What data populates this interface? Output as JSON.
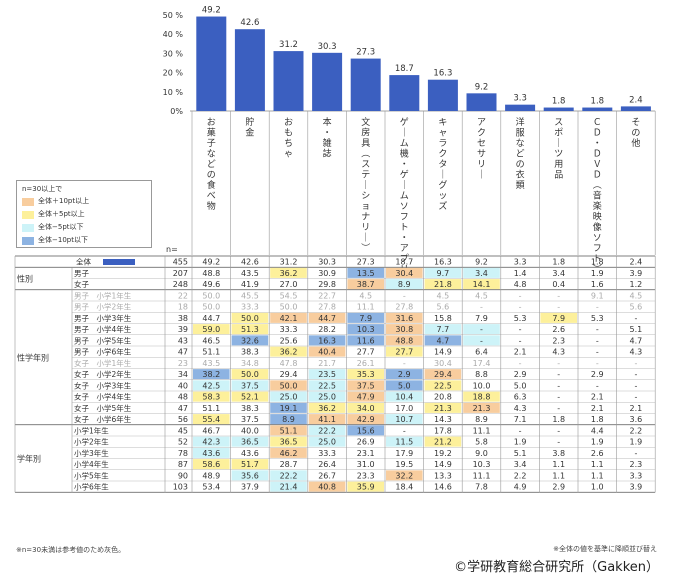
{
  "colors": {
    "bar": "#3b5fc0",
    "plus10": "#f8cd9e",
    "plus5": "#fdf09b",
    "minus5": "#cdf3f8",
    "minus10": "#8db3e2",
    "grid": "#999999"
  },
  "legend": {
    "title": "n=30以上で",
    "items": [
      {
        "label": "全体＋10pt以上",
        "color": "plus10"
      },
      {
        "label": "全体＋5pt以上",
        "color": "plus5"
      },
      {
        "label": "全体−5pt以下",
        "color": "minus5"
      },
      {
        "label": "全体−10pt以下",
        "color": "minus10"
      }
    ]
  },
  "footnote_left": "※n=30未満は参考値のため灰色。",
  "footnote_right": "※全体の値を基準に降順並び替え",
  "copyright": "©学研教育総合研究所（Gakken）",
  "chart_data": {
    "type": "bar",
    "y_ticks": [
      "50 %",
      "40 %",
      "30 %",
      "20 %",
      "10 %",
      "0%"
    ],
    "ylim": [
      0,
      50
    ],
    "categories": [
      "お菓子などの食べ物",
      "貯金",
      "おもちゃ",
      "本・雑誌",
      "文房具（ステーショナリー）",
      "ゲーム機・ゲームソフト・アプリ",
      "キャラクターグッズ",
      "アクセサリー",
      "洋服などの衣類",
      "スポーツ用品",
      "ＣＤ・ＤＶＤ（音楽映像ソフト）",
      "その他"
    ],
    "values": [
      49.2,
      42.6,
      31.2,
      30.3,
      27.3,
      18.7,
      16.3,
      9.2,
      3.3,
      1.8,
      1.8,
      2.4
    ],
    "value_labels": [
      "49.2",
      "42.6",
      "31.2",
      "30.3",
      "27.3",
      "18.7",
      "16.3",
      "9.2",
      "3.3",
      "1.8",
      "1.8",
      "2.4"
    ],
    "n_label": "n=",
    "table": {
      "total": {
        "label": "全体",
        "n": "455",
        "values": [
          "49.2",
          "42.6",
          "31.2",
          "30.3",
          "27.3",
          "18.7",
          "16.3",
          "9.2",
          "3.3",
          "1.8",
          "1.8",
          "2.4"
        ]
      },
      "groups": [
        {
          "label": "性別",
          "rows": [
            {
              "label": "男子",
              "n": "207",
              "gray": false,
              "values": [
                "48.8",
                "43.5",
                "36.2",
                "30.9",
                "13.5",
                "30.4",
                "9.7",
                "3.4",
                "1.4",
                "3.4",
                "1.9",
                "3.9"
              ],
              "colors": [
                "",
                "",
                "plus5",
                "",
                "minus10",
                "plus10",
                "minus5",
                "minus5",
                "",
                "",
                "",
                ""
              ]
            },
            {
              "label": "女子",
              "n": "248",
              "gray": false,
              "values": [
                "49.6",
                "41.9",
                "27.0",
                "29.8",
                "38.7",
                "8.9",
                "21.8",
                "14.1",
                "4.8",
                "0.4",
                "1.6",
                "1.2"
              ],
              "colors": [
                "",
                "",
                "",
                "",
                "plus10",
                "minus5",
                "plus5",
                "plus5",
                "",
                "",
                "",
                ""
              ]
            }
          ]
        },
        {
          "label": "性学年別",
          "rows": [
            {
              "label": "男子　小学1年生",
              "n": "22",
              "gray": true,
              "values": [
                "50.0",
                "45.5",
                "54.5",
                "22.7",
                "4.5",
                "-",
                "4.5",
                "4.5",
                "-",
                "-",
                "9.1",
                "4.5"
              ],
              "colors": [
                "",
                "",
                "",
                "",
                "",
                "",
                "",
                "",
                "",
                "",
                "",
                ""
              ]
            },
            {
              "label": "男子　小学2年生",
              "n": "18",
              "gray": true,
              "values": [
                "50.0",
                "33.3",
                "50.0",
                "27.8",
                "11.1",
                "27.8",
                "5.6",
                "-",
                "-",
                "-",
                "-",
                "5.6"
              ],
              "colors": [
                "",
                "",
                "",
                "",
                "",
                "",
                "",
                "",
                "",
                "",
                "",
                ""
              ]
            },
            {
              "label": "男子　小学3年生",
              "n": "38",
              "gray": false,
              "values": [
                "44.7",
                "50.0",
                "42.1",
                "44.7",
                "7.9",
                "31.6",
                "15.8",
                "7.9",
                "5.3",
                "7.9",
                "5.3",
                "-"
              ],
              "colors": [
                "",
                "plus5",
                "plus10",
                "plus10",
                "minus10",
                "plus10",
                "",
                "",
                "",
                "plus5",
                "",
                ""
              ]
            },
            {
              "label": "男子　小学4年生",
              "n": "39",
              "gray": false,
              "values": [
                "59.0",
                "51.3",
                "33.3",
                "28.2",
                "10.3",
                "30.8",
                "7.7",
                "-",
                "-",
                "2.6",
                "-",
                "5.1"
              ],
              "colors": [
                "plus5",
                "plus5",
                "",
                "",
                "minus10",
                "plus10",
                "minus5",
                "minus5",
                "",
                "",
                "",
                ""
              ]
            },
            {
              "label": "男子　小学5年生",
              "n": "43",
              "gray": false,
              "values": [
                "46.5",
                "32.6",
                "25.6",
                "16.3",
                "11.6",
                "48.8",
                "4.7",
                "-",
                "-",
                "2.3",
                "-",
                "4.7"
              ],
              "colors": [
                "",
                "minus10",
                "",
                "minus10",
                "minus10",
                "plus10",
                "minus10",
                "minus5",
                "",
                "",
                "",
                ""
              ]
            },
            {
              "label": "男子　小学6年生",
              "n": "47",
              "gray": false,
              "values": [
                "51.1",
                "38.3",
                "36.2",
                "40.4",
                "27.7",
                "27.7",
                "14.9",
                "6.4",
                "2.1",
                "4.3",
                "-",
                "4.3"
              ],
              "colors": [
                "",
                "",
                "plus5",
                "plus10",
                "",
                "plus5",
                "",
                "",
                "",
                "",
                "",
                ""
              ]
            },
            {
              "label": "女子　小学1年生",
              "n": "23",
              "gray": true,
              "values": [
                "43.5",
                "34.8",
                "47.8",
                "21.7",
                "26.1",
                "-",
                "30.4",
                "17.4",
                "-",
                "-",
                "-",
                "-"
              ],
              "colors": [
                "",
                "",
                "",
                "",
                "",
                "",
                "",
                "",
                "",
                "",
                "",
                ""
              ]
            },
            {
              "label": "女子　小学2年生",
              "n": "34",
              "gray": false,
              "values": [
                "38.2",
                "50.0",
                "29.4",
                "23.5",
                "35.3",
                "2.9",
                "29.4",
                "8.8",
                "2.9",
                "-",
                "2.9",
                "-"
              ],
              "colors": [
                "minus10",
                "plus5",
                "",
                "minus5",
                "plus5",
                "minus10",
                "plus10",
                "",
                "",
                "",
                "",
                ""
              ]
            },
            {
              "label": "女子　小学3年生",
              "n": "40",
              "gray": false,
              "values": [
                "42.5",
                "37.5",
                "50.0",
                "22.5",
                "37.5",
                "5.0",
                "22.5",
                "10.0",
                "5.0",
                "-",
                "-",
                "-"
              ],
              "colors": [
                "minus5",
                "minus5",
                "plus10",
                "minus5",
                "plus10",
                "minus10",
                "plus5",
                "",
                "",
                "",
                "",
                ""
              ]
            },
            {
              "label": "女子　小学4年生",
              "n": "48",
              "gray": false,
              "values": [
                "58.3",
                "52.1",
                "25.0",
                "25.0",
                "47.9",
                "10.4",
                "20.8",
                "18.8",
                "6.3",
                "-",
                "2.1",
                "-"
              ],
              "colors": [
                "plus5",
                "plus5",
                "minus5",
                "minus5",
                "plus10",
                "minus5",
                "",
                "plus5",
                "",
                "",
                "",
                ""
              ]
            },
            {
              "label": "女子　小学5年生",
              "n": "47",
              "gray": false,
              "values": [
                "51.1",
                "38.3",
                "19.1",
                "36.2",
                "34.0",
                "17.0",
                "21.3",
                "21.3",
                "4.3",
                "-",
                "2.1",
                "2.1"
              ],
              "colors": [
                "",
                "",
                "minus10",
                "plus5",
                "plus5",
                "",
                "plus5",
                "plus10",
                "",
                "",
                "",
                ""
              ]
            },
            {
              "label": "女子　小学6年生",
              "n": "56",
              "gray": false,
              "values": [
                "55.4",
                "37.5",
                "8.9",
                "41.1",
                "42.9",
                "10.7",
                "14.3",
                "8.9",
                "7.1",
                "1.8",
                "1.8",
                "3.6"
              ],
              "colors": [
                "plus5",
                "",
                "minus10",
                "plus10",
                "plus10",
                "minus5",
                "",
                "",
                "",
                "",
                "",
                ""
              ]
            }
          ]
        },
        {
          "label": "学年別",
          "rows": [
            {
              "label": "小学1年生",
              "n": "45",
              "gray": false,
              "values": [
                "46.7",
                "40.0",
                "51.1",
                "22.2",
                "15.6",
                "-",
                "17.8",
                "11.1",
                "-",
                "-",
                "4.4",
                "2.2"
              ],
              "colors": [
                "",
                "",
                "plus10",
                "minus5",
                "minus10",
                "",
                "",
                "",
                "",
                "",
                "",
                ""
              ]
            },
            {
              "label": "小学2年生",
              "n": "52",
              "gray": false,
              "values": [
                "42.3",
                "36.5",
                "36.5",
                "25.0",
                "26.9",
                "11.5",
                "21.2",
                "5.8",
                "1.9",
                "-",
                "1.9",
                "1.9"
              ],
              "colors": [
                "minus5",
                "minus5",
                "plus5",
                "minus5",
                "",
                "minus5",
                "plus5",
                "",
                "",
                "",
                "",
                ""
              ]
            },
            {
              "label": "小学3年生",
              "n": "78",
              "gray": false,
              "values": [
                "43.6",
                "43.6",
                "46.2",
                "33.3",
                "23.1",
                "17.9",
                "19.2",
                "9.0",
                "5.1",
                "3.8",
                "2.6",
                "-"
              ],
              "colors": [
                "minus5",
                "",
                "plus10",
                "",
                "",
                "",
                "",
                "",
                "",
                "",
                "",
                ""
              ]
            },
            {
              "label": "小学4年生",
              "n": "87",
              "gray": false,
              "values": [
                "58.6",
                "51.7",
                "28.7",
                "26.4",
                "31.0",
                "19.5",
                "14.9",
                "10.3",
                "3.4",
                "1.1",
                "1.1",
                "2.3"
              ],
              "colors": [
                "plus5",
                "plus5",
                "",
                "",
                "",
                "",
                "",
                "",
                "",
                "",
                "",
                ""
              ]
            },
            {
              "label": "小学5年生",
              "n": "90",
              "gray": false,
              "values": [
                "48.9",
                "35.6",
                "22.2",
                "26.7",
                "23.3",
                "32.2",
                "13.3",
                "11.1",
                "2.2",
                "1.1",
                "1.1",
                "3.3"
              ],
              "colors": [
                "",
                "minus5",
                "minus5",
                "",
                "",
                "plus10",
                "",
                "",
                "",
                "",
                "",
                ""
              ]
            },
            {
              "label": "小学6年生",
              "n": "103",
              "gray": false,
              "values": [
                "53.4",
                "37.9",
                "21.4",
                "40.8",
                "35.9",
                "18.4",
                "14.6",
                "7.8",
                "4.9",
                "2.9",
                "1.0",
                "3.9"
              ],
              "colors": [
                "",
                "",
                "minus5",
                "plus10",
                "plus5",
                "",
                "",
                "",
                "",
                "",
                "",
                ""
              ]
            }
          ]
        }
      ]
    }
  }
}
